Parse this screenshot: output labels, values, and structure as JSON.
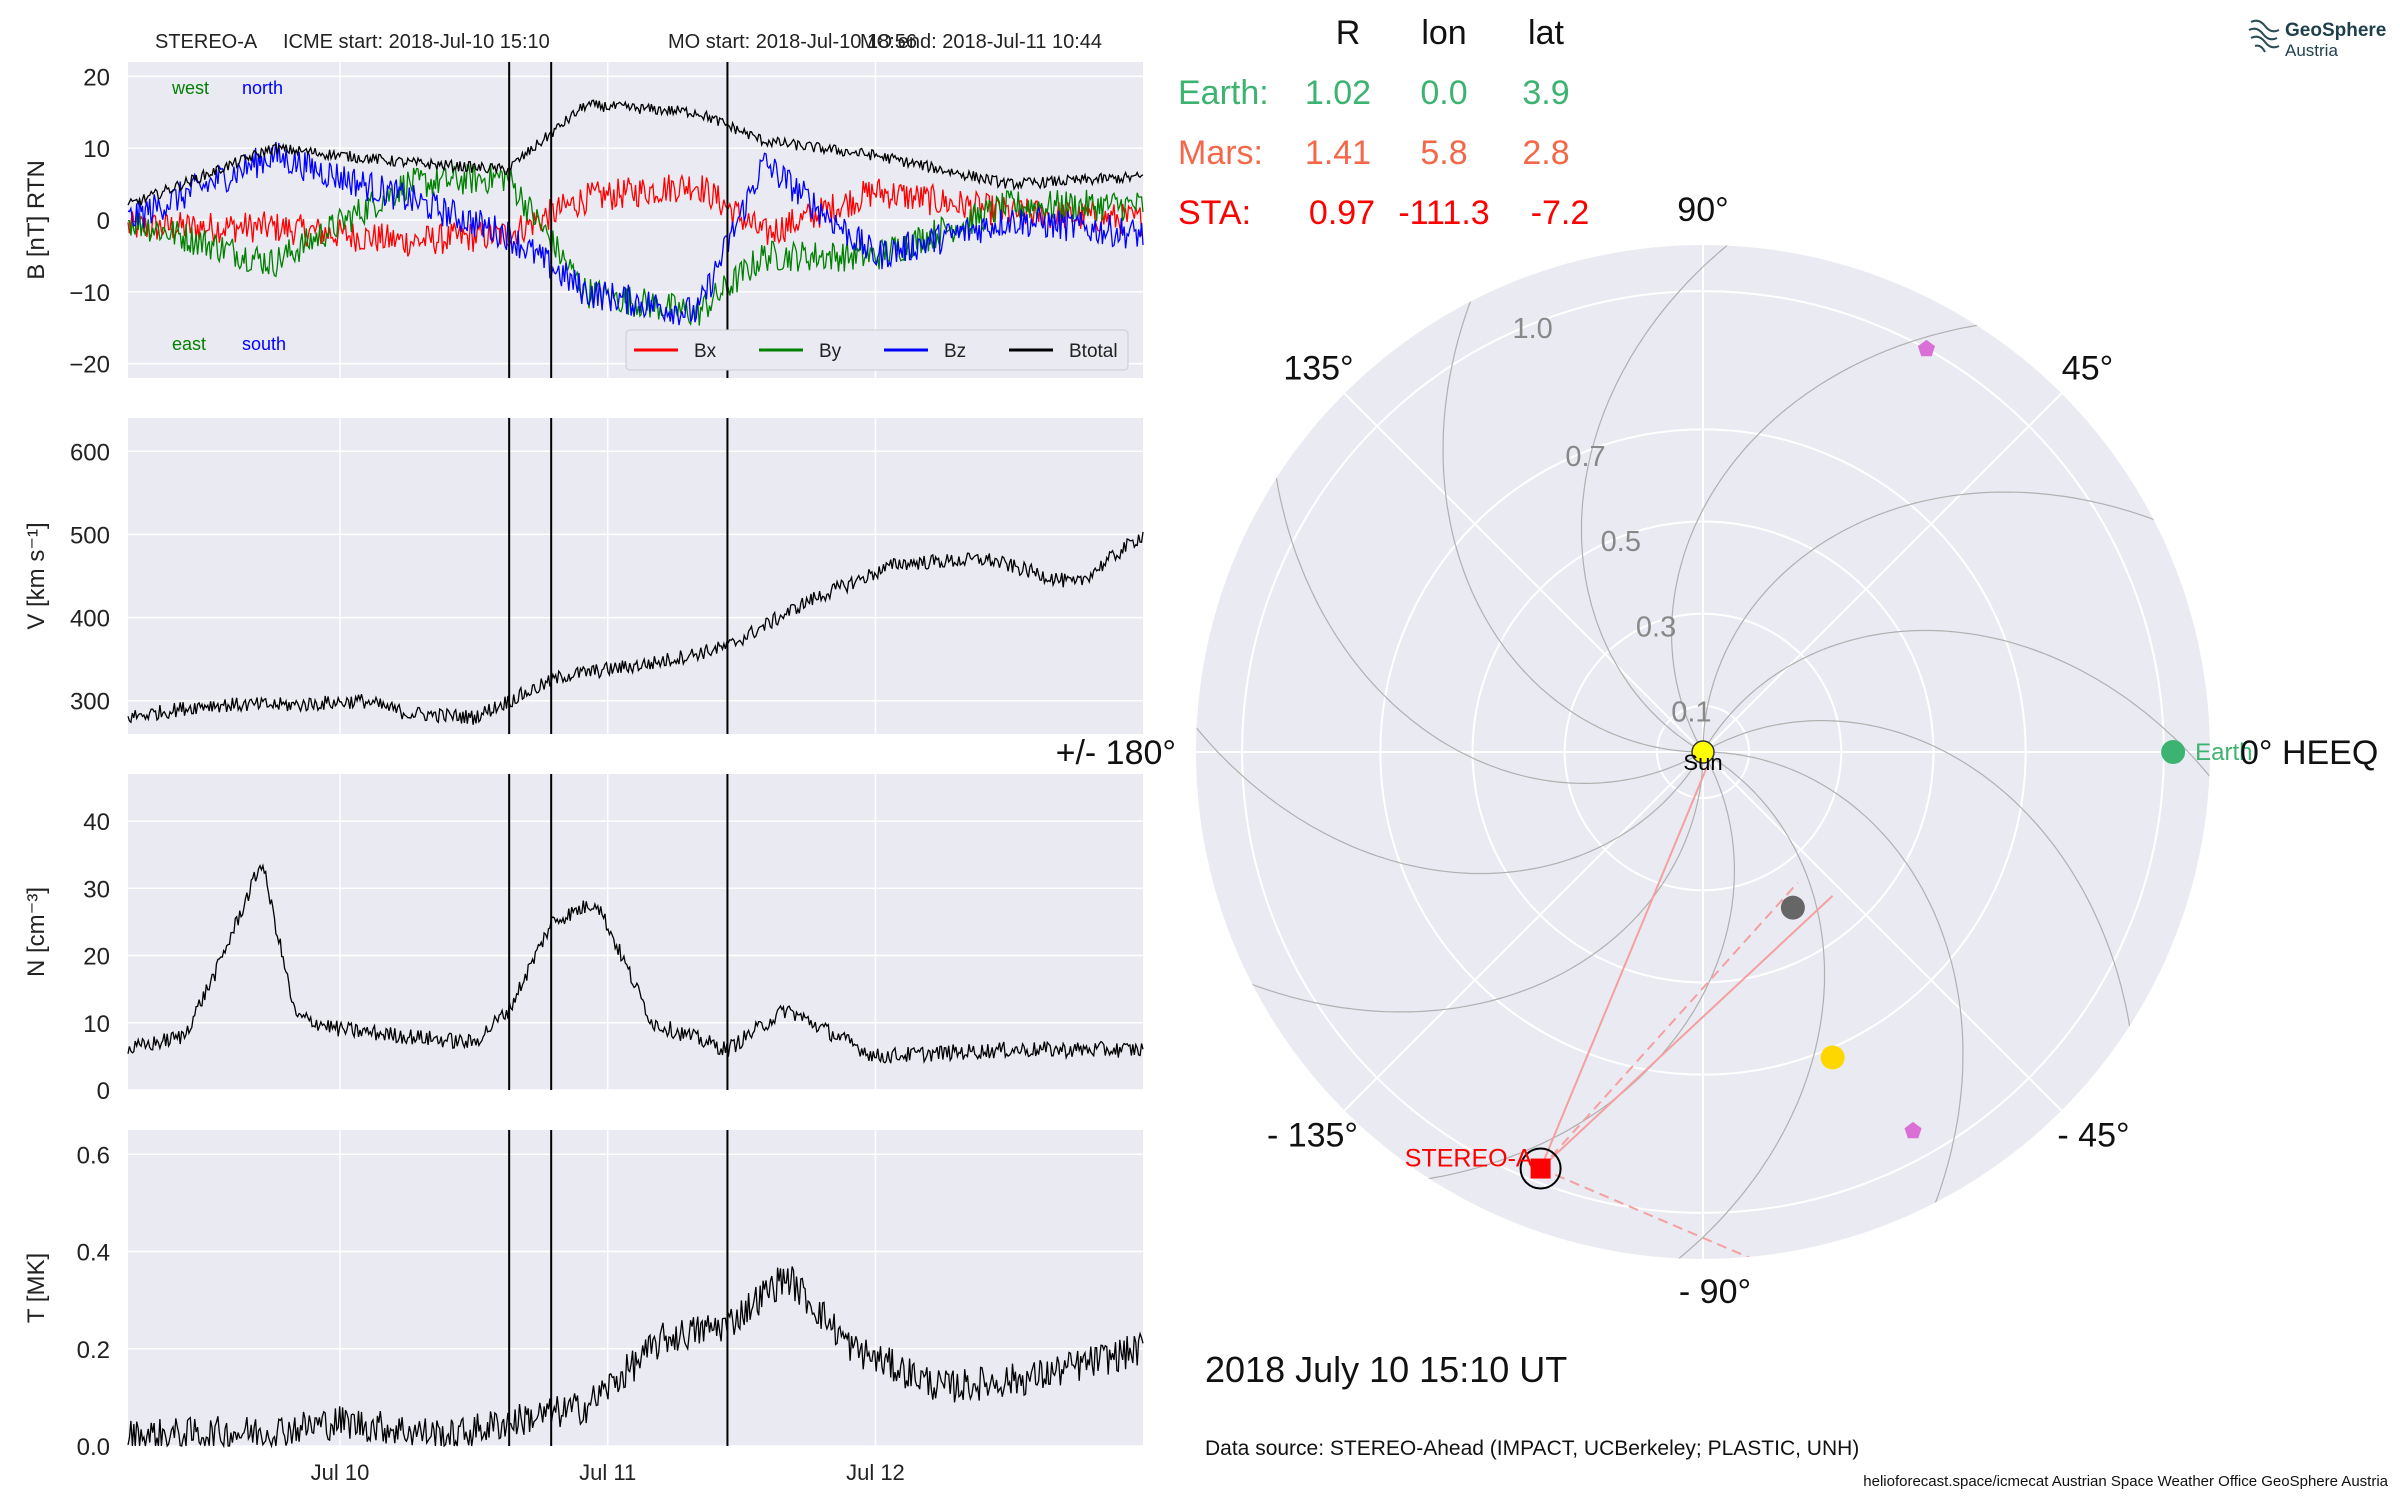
{
  "header": {
    "spacecraft": "STEREO-A",
    "icme_start": "ICME start: 2018-Jul-10 15:10",
    "mo_start": "MO start: 2018-Jul-10 18:56",
    "mo_end": "MO end: 2018-Jul-11 10:44"
  },
  "positions_table": {
    "col_r": "R",
    "col_lon": "lon",
    "col_lat": "lat",
    "rows": [
      {
        "name": "Earth:",
        "r": "1.02",
        "lon": "0.0",
        "lat": "3.9",
        "color": "#3cb371"
      },
      {
        "name": "Mars:",
        "r": "1.41",
        "lon": "5.8",
        "lat": "2.8",
        "color": "#f4684a"
      },
      {
        "name": "STA:",
        "r": "0.97",
        "lon": "-111.3",
        "lat": "-7.2",
        "color": "#ff0000"
      }
    ]
  },
  "logo": {
    "line1": "GeoSphere",
    "line2": "Austria",
    "icon": "geosphere-logo-icon"
  },
  "polar_plot": {
    "angle_labels": {
      "a90": "90°",
      "a45": "45°",
      "a0": "0° HEEQ",
      "am45": "- 45°",
      "am90": "- 90°",
      "am135": "- 135°",
      "a180": "+/- 180°",
      "a135": "135°"
    },
    "radial_labels": [
      "0.1",
      "0.3",
      "0.5",
      "0.7",
      "1.0"
    ],
    "sun_label": "Sun",
    "earth_label": "Earth",
    "stereo_label": "STEREO-A"
  },
  "date_label": "2018 July 10  15:10 UT",
  "data_source": "Data source: STEREO-Ahead (IMPACT, UCBerkeley; PLASTIC, UNH)",
  "footer": "helioforecast.space/icmecat   Austrian Space Weather Office   GeoSphere Austria",
  "colors": {
    "bx": "#ff0000",
    "by": "#008000",
    "bz": "#0000ff",
    "btotal": "#000000",
    "panel_bg": "#eaeaf2",
    "earth": "#3cb371",
    "mars": "#f4684a",
    "sta": "#ff0000",
    "sun": "#ffff00",
    "pink": "#da70d6",
    "gold": "#ffd700",
    "gray_planet": "#666666"
  },
  "chart_data": [
    {
      "type": "line",
      "title": "",
      "xlabel": "",
      "ylabel": "B [nT] RTN",
      "ylim": [
        -22,
        22
      ],
      "yticks": [
        "20",
        "10",
        "0",
        "−10",
        "−20"
      ],
      "xticks": [
        "Jul 10",
        "Jul 11",
        "Jul 12"
      ],
      "event_lines": [
        "2018-07-10 15:10",
        "2018-07-10 18:56",
        "2018-07-11 10:44"
      ],
      "annotations": {
        "west": "west",
        "north": "north",
        "east": "east",
        "south": "south"
      },
      "legend": "bottom-right",
      "series": [
        {
          "name": "Bx",
          "color": "#ff0000",
          "x": [
            "2018-07-09 05:00",
            "2018-07-09 18:00",
            "2018-07-10 06:00",
            "2018-07-10 15:00",
            "2018-07-10 22:00",
            "2018-07-11 08:00",
            "2018-07-11 14:00",
            "2018-07-12 00:00",
            "2018-07-12 12:00",
            "2018-07-12 23:59"
          ],
          "values": [
            -1,
            -1,
            -3,
            -2,
            3,
            5,
            -2,
            4,
            1,
            0
          ]
        },
        {
          "name": "By",
          "color": "#008000",
          "x": [
            "2018-07-09 05:00",
            "2018-07-09 18:00",
            "2018-07-10 06:00",
            "2018-07-10 15:00",
            "2018-07-10 22:00",
            "2018-07-11 08:00",
            "2018-07-11 14:00",
            "2018-07-12 00:00",
            "2018-07-12 12:00",
            "2018-07-12 23:59"
          ],
          "values": [
            0,
            -6,
            5,
            6,
            -10,
            -13,
            -5,
            -5,
            2,
            2
          ]
        },
        {
          "name": "Bz",
          "color": "#0000ff",
          "x": [
            "2018-07-09 05:00",
            "2018-07-09 18:00",
            "2018-07-10 06:00",
            "2018-07-10 15:00",
            "2018-07-10 22:00",
            "2018-07-11 08:00",
            "2018-07-11 14:00",
            "2018-07-12 00:00",
            "2018-07-12 12:00",
            "2018-07-12 23:59"
          ],
          "values": [
            0,
            9,
            3,
            -2,
            -10,
            -13,
            8,
            -5,
            0,
            -2
          ]
        },
        {
          "name": "Btotal",
          "color": "#000000",
          "x": [
            "2018-07-09 05:00",
            "2018-07-09 18:00",
            "2018-07-10 06:00",
            "2018-07-10 15:00",
            "2018-07-10 22:00",
            "2018-07-11 08:00",
            "2018-07-11 14:00",
            "2018-07-12 00:00",
            "2018-07-12 12:00",
            "2018-07-12 23:59"
          ],
          "values": [
            2,
            10,
            8,
            7,
            16,
            15,
            11,
            9,
            5,
            6
          ]
        }
      ]
    },
    {
      "type": "line",
      "ylabel": "V [km s⁻¹]",
      "ylim": [
        260,
        640
      ],
      "yticks": [
        "600",
        "500",
        "400",
        "300"
      ],
      "series": [
        {
          "color": "#000000",
          "x": [
            "2018-07-09 05:00",
            "2018-07-09 12:00",
            "2018-07-09 20:00",
            "2018-07-10 02:00",
            "2018-07-10 06:00",
            "2018-07-10 12:00",
            "2018-07-10 15:10",
            "2018-07-10 20:00",
            "2018-07-11 04:00",
            "2018-07-11 10:44",
            "2018-07-11 18:00",
            "2018-07-12 02:00",
            "2018-07-12 10:00",
            "2018-07-12 18:00",
            "2018-07-12 23:59"
          ],
          "values": [
            280,
            295,
            295,
            300,
            285,
            280,
            300,
            330,
            345,
            365,
            420,
            465,
            470,
            440,
            500
          ]
        }
      ]
    },
    {
      "type": "line",
      "ylabel": "N [cm⁻³]",
      "ylim": [
        0,
        47
      ],
      "yticks": [
        "40",
        "30",
        "20",
        "10",
        "0"
      ],
      "series": [
        {
          "color": "#000000",
          "x": [
            "2018-07-09 05:00",
            "2018-07-09 10:00",
            "2018-07-09 13:00",
            "2018-07-09 17:00",
            "2018-07-09 20:00",
            "2018-07-10 00:00",
            "2018-07-10 06:00",
            "2018-07-10 12:00",
            "2018-07-10 15:10",
            "2018-07-10 19:00",
            "2018-07-10 23:00",
            "2018-07-11 04:00",
            "2018-07-11 10:44",
            "2018-07-11 16:00",
            "2018-07-12 00:00",
            "2018-07-12 12:00",
            "2018-07-12 23:59"
          ],
          "values": [
            6,
            8,
            18,
            34,
            11,
            9,
            8,
            7,
            12,
            25,
            28,
            10,
            6,
            12,
            5,
            6,
            6
          ]
        }
      ]
    },
    {
      "type": "line",
      "ylabel": "T [MK]",
      "xlabel": "",
      "ylim": [
        0,
        0.65
      ],
      "yticks": [
        "0.6",
        "0.4",
        "0.2",
        "0.0"
      ],
      "xticks": [
        "Jul 10",
        "Jul 11",
        "Jul 12"
      ],
      "series": [
        {
          "color": "#000000",
          "x": [
            "2018-07-09 05:00",
            "2018-07-09 18:00",
            "2018-07-10 00:00",
            "2018-07-10 10:00",
            "2018-07-10 15:10",
            "2018-07-10 22:00",
            "2018-07-11 05:00",
            "2018-07-11 10:44",
            "2018-07-11 16:00",
            "2018-07-11 22:00",
            "2018-07-12 06:00",
            "2018-07-12 14:00",
            "2018-07-12 23:59"
          ],
          "values": [
            0.02,
            0.03,
            0.05,
            0.02,
            0.05,
            0.08,
            0.22,
            0.25,
            0.35,
            0.2,
            0.12,
            0.14,
            0.2
          ]
        }
      ]
    },
    {
      "type": "scatter",
      "subtype": "polar",
      "rlim": [
        0,
        1.1
      ],
      "angle_reference": "0° HEEQ",
      "points": [
        {
          "label": "Sun",
          "r": 0.0,
          "lon": 0.0,
          "color": "#ffff00",
          "marker": "circle"
        },
        {
          "label": "Earth",
          "r": 1.02,
          "lon": 0.0,
          "color": "#3cb371",
          "marker": "circle"
        },
        {
          "label": "STEREO-A",
          "r": 0.97,
          "lon": -111.3,
          "color": "#ff0000",
          "marker": "square"
        },
        {
          "label": "",
          "r": 0.39,
          "lon": -60.0,
          "color": "#666666",
          "marker": "circle"
        },
        {
          "label": "",
          "r": 0.72,
          "lon": -67.0,
          "color": "#ffd700",
          "marker": "circle"
        },
        {
          "label": "",
          "r": 1.0,
          "lon": 61.0,
          "color": "#da70d6",
          "marker": "pentagon"
        },
        {
          "label": "",
          "r": 0.94,
          "lon": -61.0,
          "color": "#da70d6",
          "marker": "pentagon"
        }
      ]
    }
  ]
}
